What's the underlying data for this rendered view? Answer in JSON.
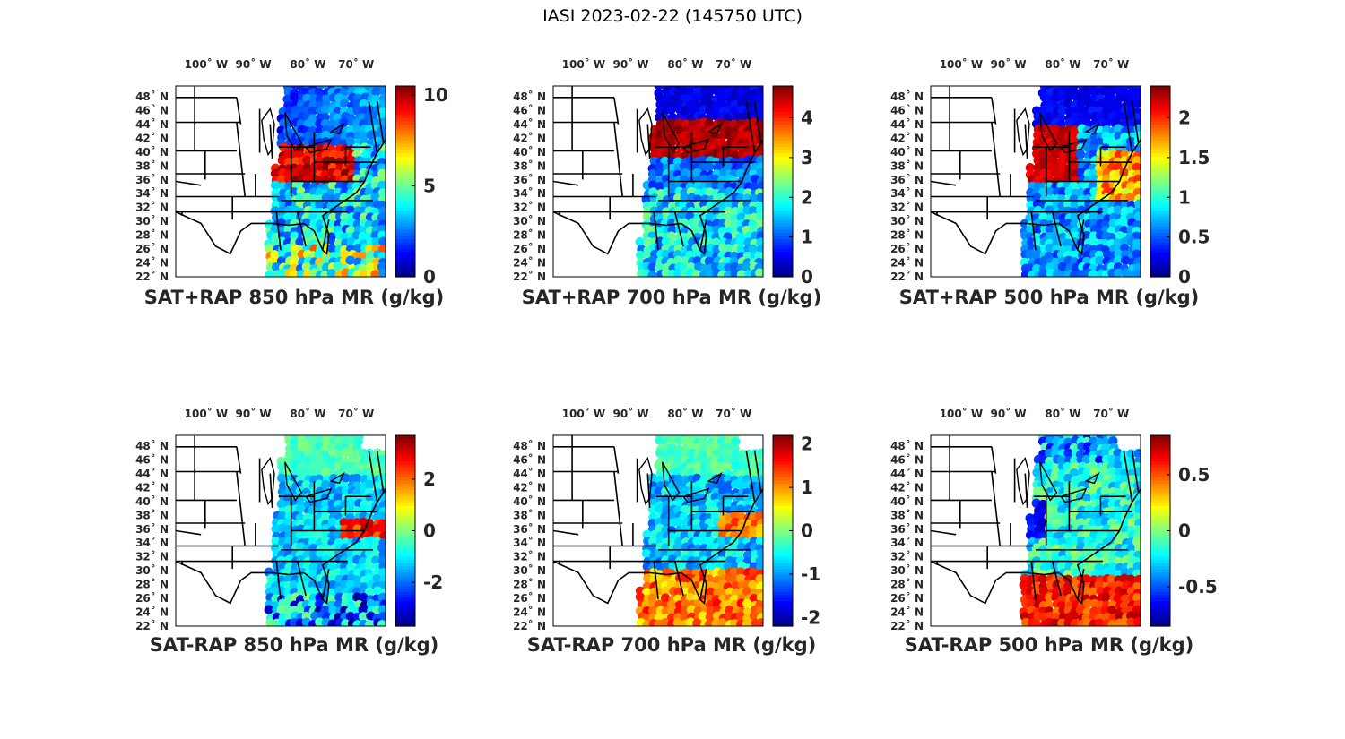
{
  "figure_title": "IASI 2023-02-22 (145750 UTC)",
  "colormap": "jet",
  "chart_data": [
    {
      "type": "heatmap",
      "title": "SAT+RAP 850 hPa MR (g/kg)",
      "lon_ticks": [
        "100˚ W",
        "90˚ W",
        "80˚ W",
        "70˚ W"
      ],
      "lat_ticks": [
        "48˚ N",
        "46˚ N",
        "44˚ N",
        "42˚ N",
        "40˚ N",
        "38˚ N",
        "36˚ N",
        "34˚ N",
        "32˚ N",
        "30˚ N",
        "28˚ N",
        "26˚ N",
        "24˚ N",
        "22˚ N"
      ],
      "clim": [
        0,
        10.5
      ],
      "cticks": [
        0,
        5,
        10
      ],
      "ctick_labels": [
        "0",
        "5",
        "10"
      ]
    },
    {
      "type": "heatmap",
      "title": "SAT+RAP 700 hPa MR (g/kg)",
      "lon_ticks": [
        "100˚ W",
        "90˚ W",
        "80˚ W",
        "70˚ W"
      ],
      "lat_ticks": [
        "48˚ N",
        "46˚ N",
        "44˚ N",
        "42˚ N",
        "40˚ N",
        "38˚ N",
        "36˚ N",
        "34˚ N",
        "32˚ N",
        "30˚ N",
        "28˚ N",
        "26˚ N",
        "24˚ N",
        "22˚ N"
      ],
      "clim": [
        0,
        4.8
      ],
      "cticks": [
        0,
        1,
        2,
        3,
        4
      ],
      "ctick_labels": [
        "0",
        "1",
        "2",
        "3",
        "4"
      ]
    },
    {
      "type": "heatmap",
      "title": "SAT+RAP 500 hPa MR (g/kg)",
      "lon_ticks": [
        "100˚ W",
        "90˚ W",
        "80˚ W",
        "70˚ W"
      ],
      "lat_ticks": [
        "48˚ N",
        "46˚ N",
        "44˚ N",
        "42˚ N",
        "40˚ N",
        "38˚ N",
        "36˚ N",
        "34˚ N",
        "32˚ N",
        "30˚ N",
        "28˚ N",
        "26˚ N",
        "24˚ N",
        "22˚ N"
      ],
      "clim": [
        0,
        2.4
      ],
      "cticks": [
        0,
        0.5,
        1,
        1.5,
        2
      ],
      "ctick_labels": [
        "0",
        "0.5",
        "1",
        "1.5",
        "2"
      ]
    },
    {
      "type": "heatmap",
      "title": "SAT-RAP 850 hPa MR (g/kg)",
      "lon_ticks": [
        "100˚ W",
        "90˚ W",
        "80˚ W",
        "70˚ W"
      ],
      "lat_ticks": [
        "48˚ N",
        "46˚ N",
        "44˚ N",
        "42˚ N",
        "40˚ N",
        "38˚ N",
        "36˚ N",
        "34˚ N",
        "32˚ N",
        "30˚ N",
        "28˚ N",
        "26˚ N",
        "24˚ N",
        "22˚ N"
      ],
      "clim": [
        -3.7,
        3.7
      ],
      "cticks": [
        -2,
        0,
        2
      ],
      "ctick_labels": [
        "-2",
        "0",
        "2"
      ]
    },
    {
      "type": "heatmap",
      "title": "SAT-RAP 700 hPa MR (g/kg)",
      "lon_ticks": [
        "100˚ W",
        "90˚ W",
        "80˚ W",
        "70˚ W"
      ],
      "lat_ticks": [
        "48˚ N",
        "46˚ N",
        "44˚ N",
        "42˚ N",
        "40˚ N",
        "38˚ N",
        "36˚ N",
        "34˚ N",
        "32˚ N",
        "30˚ N",
        "28˚ N",
        "26˚ N",
        "24˚ N",
        "22˚ N"
      ],
      "clim": [
        -2.2,
        2.2
      ],
      "cticks": [
        -2,
        -1,
        0,
        1,
        2
      ],
      "ctick_labels": [
        "-2",
        "-1",
        "0",
        "1",
        "2"
      ]
    },
    {
      "type": "heatmap",
      "title": "SAT-RAP 500 hPa MR (g/kg)",
      "lon_ticks": [
        "100˚ W",
        "90˚ W",
        "80˚ W",
        "70˚ W"
      ],
      "lat_ticks": [
        "48˚ N",
        "46˚ N",
        "44˚ N",
        "42˚ N",
        "40˚ N",
        "38˚ N",
        "36˚ N",
        "34˚ N",
        "32˚ N",
        "30˚ N",
        "28˚ N",
        "26˚ N",
        "24˚ N",
        "22˚ N"
      ],
      "clim": [
        -0.85,
        0.85
      ],
      "cticks": [
        -0.5,
        0,
        0.5
      ],
      "ctick_labels": [
        "-0.5",
        "0",
        "0.5"
      ]
    }
  ]
}
